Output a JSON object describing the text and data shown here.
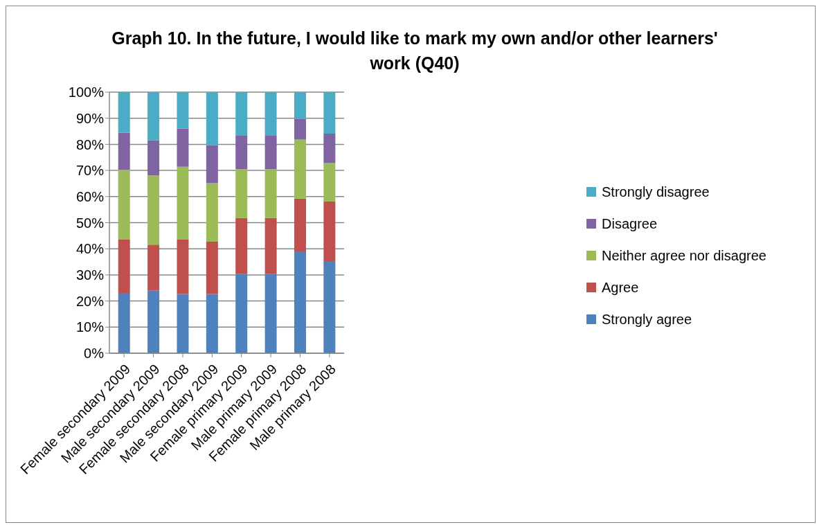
{
  "chart_data": {
    "type": "bar",
    "title": "Graph 10. In the future, I would like to mark my own and/or other learners' work (Q40)",
    "categories": [
      "Female secondary 2009",
      "Male secondary 2009",
      "Female secondary 2008",
      "Male secondary 2009",
      "Female primary 2009",
      "Male primary 2009",
      "Female primary 2008",
      "Male primary 2008"
    ],
    "stacked": true,
    "series": [
      {
        "name": "Strongly agree",
        "color": "#4f81bd",
        "values": [
          23.1,
          24.1,
          22.7,
          22.7,
          30.3,
          30.3,
          39.0,
          35.3
        ]
      },
      {
        "name": "Agree",
        "color": "#c0504d",
        "values": [
          20.4,
          17.5,
          20.8,
          20.0,
          21.5,
          21.5,
          20.2,
          22.8
        ]
      },
      {
        "name": "Neither agree nor disagree",
        "color": "#9bbb59",
        "values": [
          26.8,
          26.5,
          27.9,
          22.4,
          18.7,
          18.7,
          22.6,
          14.7
        ]
      },
      {
        "name": "Disagree",
        "color": "#8064a2",
        "values": [
          14.1,
          13.4,
          14.6,
          14.6,
          13.0,
          13.0,
          8.0,
          11.3
        ]
      },
      {
        "name": "Strongly disagree",
        "color": "#4bacc6",
        "values": [
          15.6,
          18.5,
          14.0,
          20.3,
          16.5,
          16.5,
          10.2,
          15.9
        ]
      }
    ],
    "ylim": [
      0,
      100
    ],
    "yticks": [
      {
        "value": 0,
        "label": "0%"
      },
      {
        "value": 10,
        "label": "10%"
      },
      {
        "value": 20,
        "label": "20%"
      },
      {
        "value": 30,
        "label": "30%"
      },
      {
        "value": 40,
        "label": "40%"
      },
      {
        "value": 50,
        "label": "50%"
      },
      {
        "value": 60,
        "label": "60%"
      },
      {
        "value": 70,
        "label": "70%"
      },
      {
        "value": 80,
        "label": "80%"
      },
      {
        "value": 90,
        "label": "90%"
      },
      {
        "value": 100,
        "label": "100%"
      }
    ],
    "grid": "y",
    "legend": "right"
  }
}
